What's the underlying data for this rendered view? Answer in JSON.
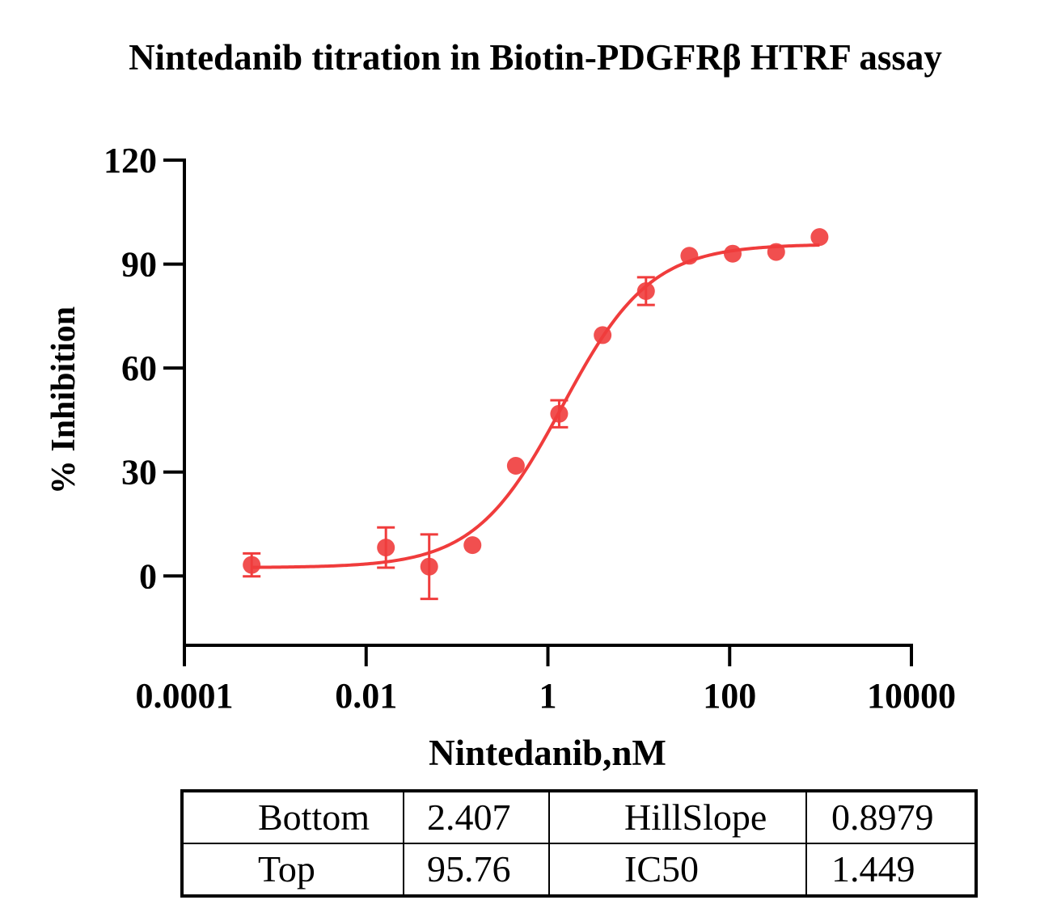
{
  "chart_data": {
    "type": "scatter",
    "title": "Nintedanib titration in Biotin-PDGFRβ HTRF assay",
    "xlabel": "Nintedanib,nM",
    "ylabel": "% Inhibition",
    "x_scale": "log",
    "xlim": [
      0.0001,
      10000
    ],
    "ylim": [
      -20,
      120
    ],
    "x_ticks": [
      0.0001,
      0.01,
      1,
      100,
      10000
    ],
    "x_tick_labels": [
      "0.0001",
      "0.01",
      "1",
      "100",
      "10000"
    ],
    "y_ticks": [
      0,
      30,
      60,
      90,
      120
    ],
    "y_tick_labels": [
      "0",
      "30",
      "60",
      "90",
      "120"
    ],
    "color": "#f03c3c",
    "series": [
      {
        "x": [
          0.00055,
          0.0165,
          0.0494,
          0.148,
          0.444,
          1.33,
          4.0,
          12.0,
          36.0,
          108,
          325,
          975
        ],
        "y": [
          3.2,
          8.2,
          2.7,
          8.9,
          31.8,
          46.8,
          69.5,
          82.2,
          92.4,
          93.0,
          93.5,
          97.8
        ],
        "err": [
          3.3,
          5.8,
          9.3,
          0,
          0,
          3.9,
          0,
          4.0,
          0,
          0,
          0,
          0
        ]
      }
    ],
    "fit": {
      "bottom": 2.407,
      "top": 95.76,
      "hillslope": 0.8979,
      "ic50": 1.449,
      "x_range": [
        0.00055,
        975
      ]
    }
  },
  "table": {
    "rows": [
      {
        "p1": "Bottom",
        "v1": "2.407",
        "p2": "HillSlope",
        "v2": "0.8979"
      },
      {
        "p1": "Top",
        "v1": "95.76",
        "p2": "IC50",
        "v2": "1.449"
      }
    ]
  }
}
